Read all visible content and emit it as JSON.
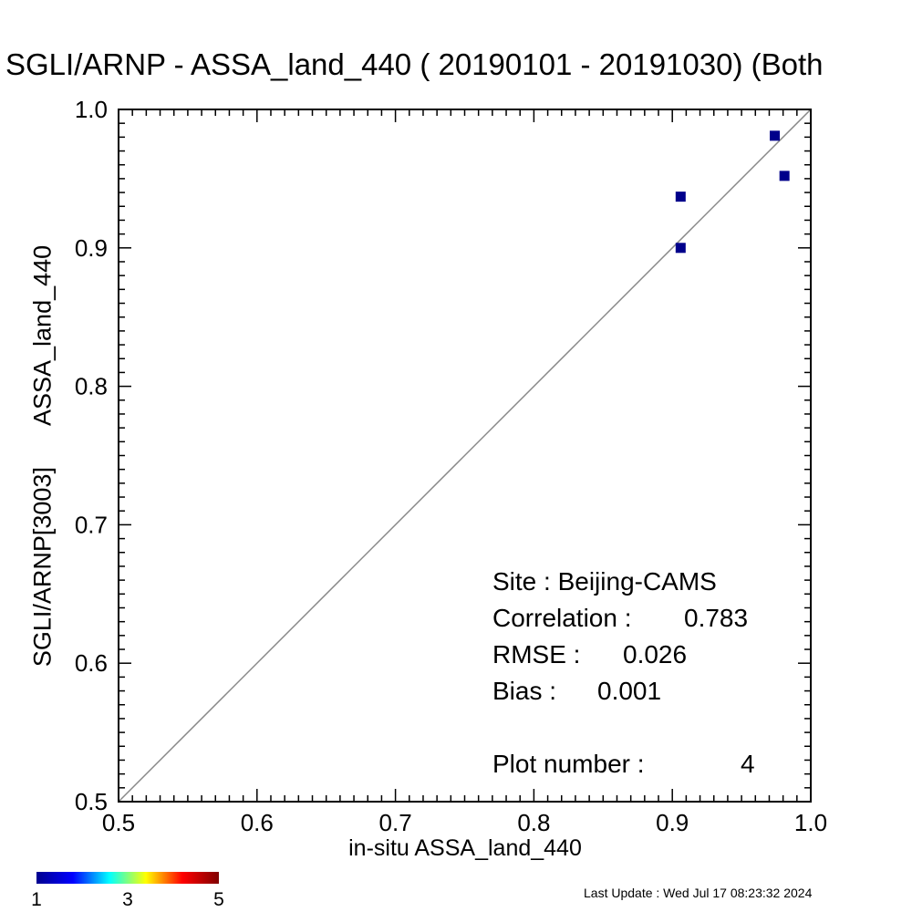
{
  "chart_data": {
    "type": "scatter",
    "title": "SGLI/ARNP - ASSA_land_440 ( 20190101 - 20191030) (Both",
    "xlabel": "in-situ ASSA_land_440",
    "ylabel_parts": [
      "SGLI/ARNP[3003]",
      "ASSA_land_440"
    ],
    "xlim": [
      0.5,
      1.0
    ],
    "ylim": [
      0.5,
      1.0
    ],
    "x_ticks": [
      "0.5",
      "0.6",
      "0.7",
      "0.8",
      "0.9",
      "1.0"
    ],
    "y_ticks": [
      "0.5",
      "0.6",
      "0.7",
      "0.8",
      "0.9",
      "1.0"
    ],
    "points": [
      {
        "x": 0.906,
        "y": 0.937
      },
      {
        "x": 0.906,
        "y": 0.9
      },
      {
        "x": 0.974,
        "y": 0.981
      },
      {
        "x": 0.981,
        "y": 0.952
      }
    ],
    "reference_line": "1:1",
    "marker_color": "#00008b",
    "line_color": "#888888",
    "stats": {
      "site_label": "Site : Beijing-CAMS",
      "corr_label": "Correlation :",
      "corr_value": "0.783",
      "rmse_label": "RMSE :",
      "rmse_value": "0.026",
      "bias_label": "Bias :",
      "bias_value": "0.001",
      "plot_label": "Plot number :",
      "plot_value": "4"
    },
    "colorbar": {
      "ticks": [
        "1",
        "3",
        "5"
      ],
      "colors": [
        "#00008f",
        "#0000ff",
        "#00ffff",
        "#ffff00",
        "#ff0000",
        "#800000"
      ]
    }
  },
  "footer": {
    "last_update": "Last Update : Wed Jul 17 08:23:32 2024"
  }
}
